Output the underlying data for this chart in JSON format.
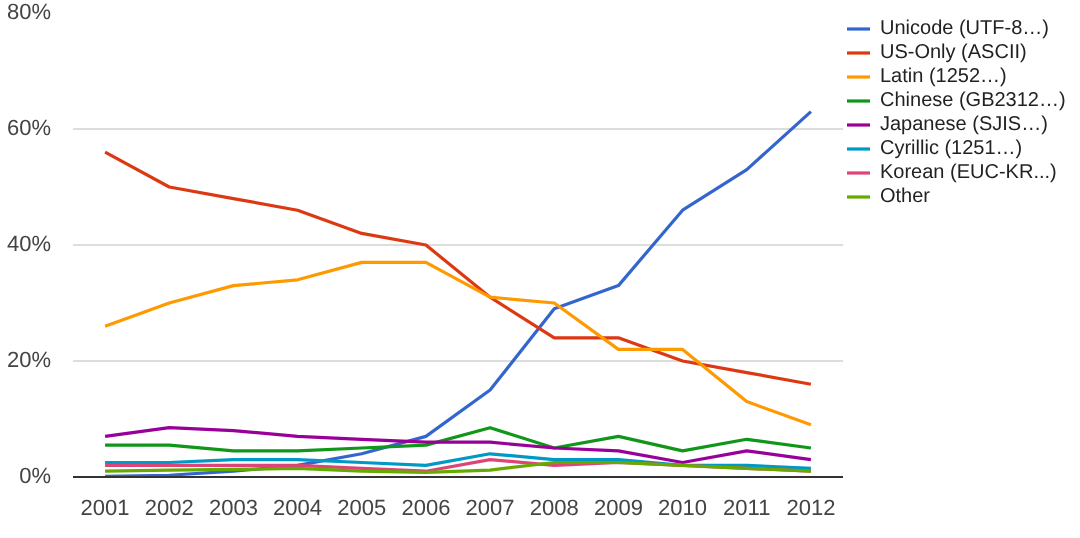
{
  "chart_data": {
    "type": "line",
    "x": [
      2001,
      2002,
      2003,
      2004,
      2005,
      2006,
      2007,
      2008,
      2009,
      2010,
      2011,
      2012
    ],
    "xlim": [
      2000.5,
      2012.5
    ],
    "xticks": [
      2001,
      2002,
      2003,
      2004,
      2005,
      2006,
      2007,
      2008,
      2009,
      2010,
      2011,
      2012
    ],
    "ylim": [
      0,
      80
    ],
    "yticks": [
      {
        "value": 0,
        "label": "0%"
      },
      {
        "value": 20,
        "label": "20%"
      },
      {
        "value": 40,
        "label": "40%"
      },
      {
        "value": 60,
        "label": "60%"
      },
      {
        "value": 80,
        "label": "80%"
      }
    ],
    "grid": "y",
    "legend": "right",
    "marker": "none",
    "line_style": "solid",
    "series": [
      {
        "name": "Unicode (UTF-8…)",
        "color": "#3366cc",
        "values": [
          0.1,
          0.3,
          1,
          2,
          4,
          7,
          15,
          29,
          33,
          46,
          53,
          63
        ]
      },
      {
        "name": "US-Only (ASCII)",
        "color": "#dc3912",
        "values": [
          56,
          50,
          48,
          46,
          42,
          40,
          31,
          24,
          24,
          20,
          18,
          16
        ]
      },
      {
        "name": "Latin (1252…)",
        "color": "#ff9900",
        "values": [
          26,
          30,
          33,
          34,
          37,
          37,
          31,
          30,
          22,
          22,
          13,
          9
        ]
      },
      {
        "name": "Chinese (GB2312…)",
        "color": "#109618",
        "values": [
          5.5,
          5.5,
          4.5,
          4.5,
          5,
          5.5,
          8.5,
          5,
          7,
          4.5,
          6.5,
          5
        ]
      },
      {
        "name": "Japanese (SJIS…)",
        "color": "#990099",
        "values": [
          7,
          8.5,
          8,
          7,
          6.5,
          6,
          6,
          5,
          4.5,
          2.5,
          4.5,
          3
        ]
      },
      {
        "name": "Cyrillic (1251…)",
        "color": "#0099c6",
        "values": [
          2.5,
          2.5,
          3,
          3,
          2.5,
          2,
          4,
          3,
          3,
          2,
          2,
          1.5
        ]
      },
      {
        "name": "Korean (EUC-KR...)",
        "color": "#dd4477",
        "values": [
          2,
          2,
          2,
          2,
          1.5,
          1,
          3,
          2,
          2.5,
          2,
          1.5,
          1
        ]
      },
      {
        "name": "Other",
        "color": "#66aa00",
        "values": [
          1,
          1.2,
          1.3,
          1.5,
          1,
          0.8,
          1.2,
          2.5,
          2.5,
          2,
          1.5,
          1
        ]
      }
    ]
  }
}
